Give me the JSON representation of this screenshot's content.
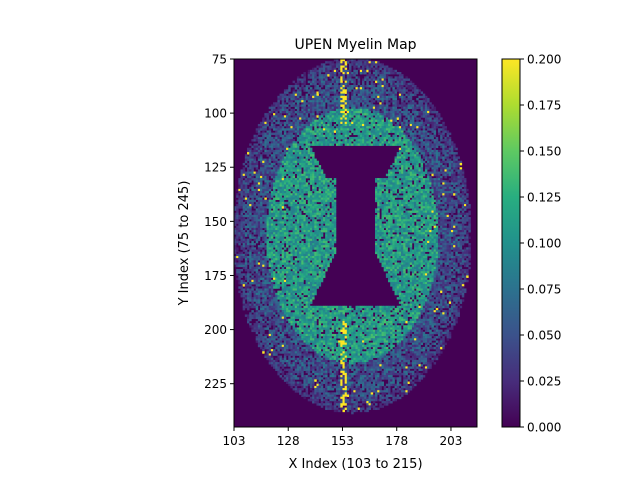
{
  "chart_data": {
    "type": "heatmap",
    "title": "UPEN Myelin Map",
    "xlabel": "X Index (103 to 215)",
    "ylabel": "Y Index (75 to 245)",
    "xlim": [
      103,
      215
    ],
    "ylim": [
      245,
      75
    ],
    "x_ticks": [
      103,
      128,
      153,
      178,
      203
    ],
    "x_tick_labels": [
      "103",
      "128",
      "153",
      "178",
      "203"
    ],
    "y_ticks": [
      75,
      100,
      125,
      150,
      175,
      200,
      225
    ],
    "y_tick_labels": [
      "75",
      "100",
      "125",
      "150",
      "175",
      "200",
      "225"
    ],
    "colormap": "viridis",
    "colorbar": {
      "range": [
        0.0,
        0.2
      ],
      "ticks": [
        0.0,
        0.025,
        0.05,
        0.075,
        0.1,
        0.125,
        0.15,
        0.175,
        0.2
      ],
      "tick_labels": [
        "0.000",
        "0.025",
        "0.050",
        "0.075",
        "0.100",
        "0.125",
        "0.150",
        "0.175",
        "0.200"
      ]
    },
    "background_value": 0.0,
    "saturated_value": 0.2,
    "brain_region": {
      "center_x": 157,
      "center_y": 156,
      "semi_axis_x": 55,
      "semi_axis_y": 82,
      "typical_value": 0.05,
      "white_matter_value": 0.11
    },
    "ventricle_region": {
      "x_range": [
        138,
        179
      ],
      "y_range": [
        115,
        188
      ],
      "value": 0.0
    },
    "grid": false,
    "legend": "colorbar-right"
  }
}
